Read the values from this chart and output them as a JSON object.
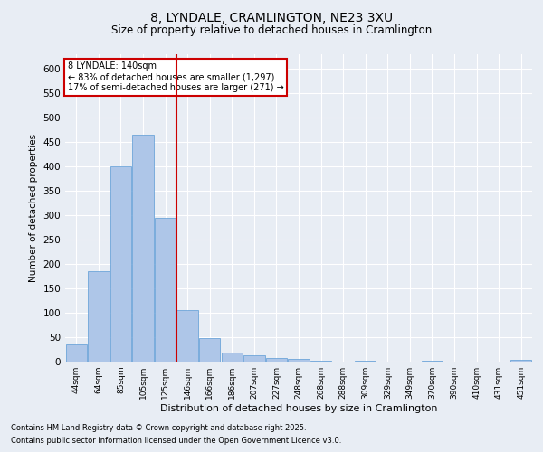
{
  "title": "8, LYNDALE, CRAMLINGTON, NE23 3XU",
  "subtitle": "Size of property relative to detached houses in Cramlington",
  "xlabel": "Distribution of detached houses by size in Cramlington",
  "ylabel": "Number of detached properties",
  "bar_color": "#aec6e8",
  "bar_edge_color": "#5b9bd5",
  "background_color": "#e8edf4",
  "grid_color": "#ffffff",
  "annotation_box_color": "#cc0000",
  "vline_color": "#cc0000",
  "vline_x": 4.5,
  "bins": [
    "44sqm",
    "64sqm",
    "85sqm",
    "105sqm",
    "125sqm",
    "146sqm",
    "166sqm",
    "186sqm",
    "207sqm",
    "227sqm",
    "248sqm",
    "268sqm",
    "288sqm",
    "309sqm",
    "329sqm",
    "349sqm",
    "370sqm",
    "390sqm",
    "410sqm",
    "431sqm",
    "451sqm"
  ],
  "values": [
    35,
    185,
    400,
    465,
    295,
    105,
    48,
    18,
    13,
    8,
    5,
    2,
    0,
    2,
    0,
    0,
    2,
    0,
    0,
    0,
    3
  ],
  "ylim": [
    0,
    630
  ],
  "yticks": [
    0,
    50,
    100,
    150,
    200,
    250,
    300,
    350,
    400,
    450,
    500,
    550,
    600
  ],
  "annotation_title": "8 LYNDALE: 140sqm",
  "annotation_line1": "← 83% of detached houses are smaller (1,297)",
  "annotation_line2": "17% of semi-detached houses are larger (271) →",
  "footnote1": "Contains HM Land Registry data © Crown copyright and database right 2025.",
  "footnote2": "Contains public sector information licensed under the Open Government Licence v3.0.",
  "fig_bg": "#e8edf4"
}
